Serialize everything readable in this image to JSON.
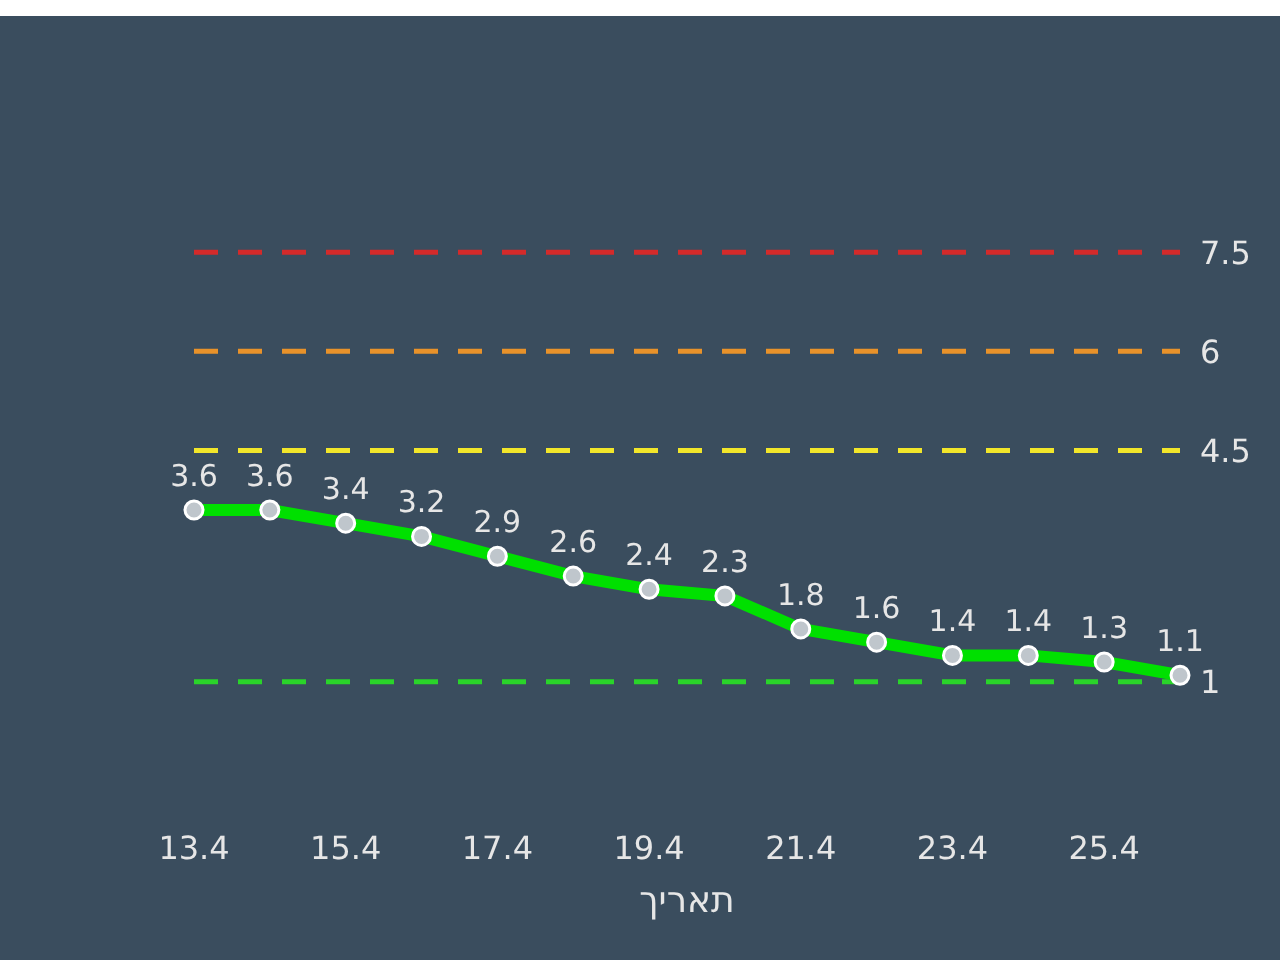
{
  "chart_data": {
    "type": "line",
    "xlabel": "תאריך",
    "categories": [
      "13.4",
      null,
      "15.4",
      null,
      "17.4",
      null,
      "19.4",
      null,
      "21.4",
      null,
      "23.4",
      null,
      "25.4",
      null
    ],
    "series": [
      {
        "color": "#00e000",
        "values": [
          3.6,
          3.6,
          3.4,
          3.2,
          2.9,
          2.6,
          2.4,
          2.3,
          1.8,
          1.6,
          1.4,
          1.4,
          1.3,
          1.1
        ]
      }
    ],
    "tick_labels": "x",
    "data_labels": true,
    "marker": "circle",
    "line_style": "solid",
    "ref_lines": [
      {
        "axis": "y",
        "value": 7.5,
        "label": "7.5",
        "color": "#d42a2a",
        "line_style": "dashed"
      },
      {
        "axis": "y",
        "value": 6,
        "label": "6",
        "color": "#e8922a",
        "line_style": "dashed"
      },
      {
        "axis": "y",
        "value": 4.5,
        "label": "4.5",
        "color": "#f2e62a",
        "line_style": "dashed"
      },
      {
        "axis": "y",
        "value": 1,
        "label": "1",
        "color": "#2ad42a",
        "line_style": "dashed"
      }
    ]
  }
}
